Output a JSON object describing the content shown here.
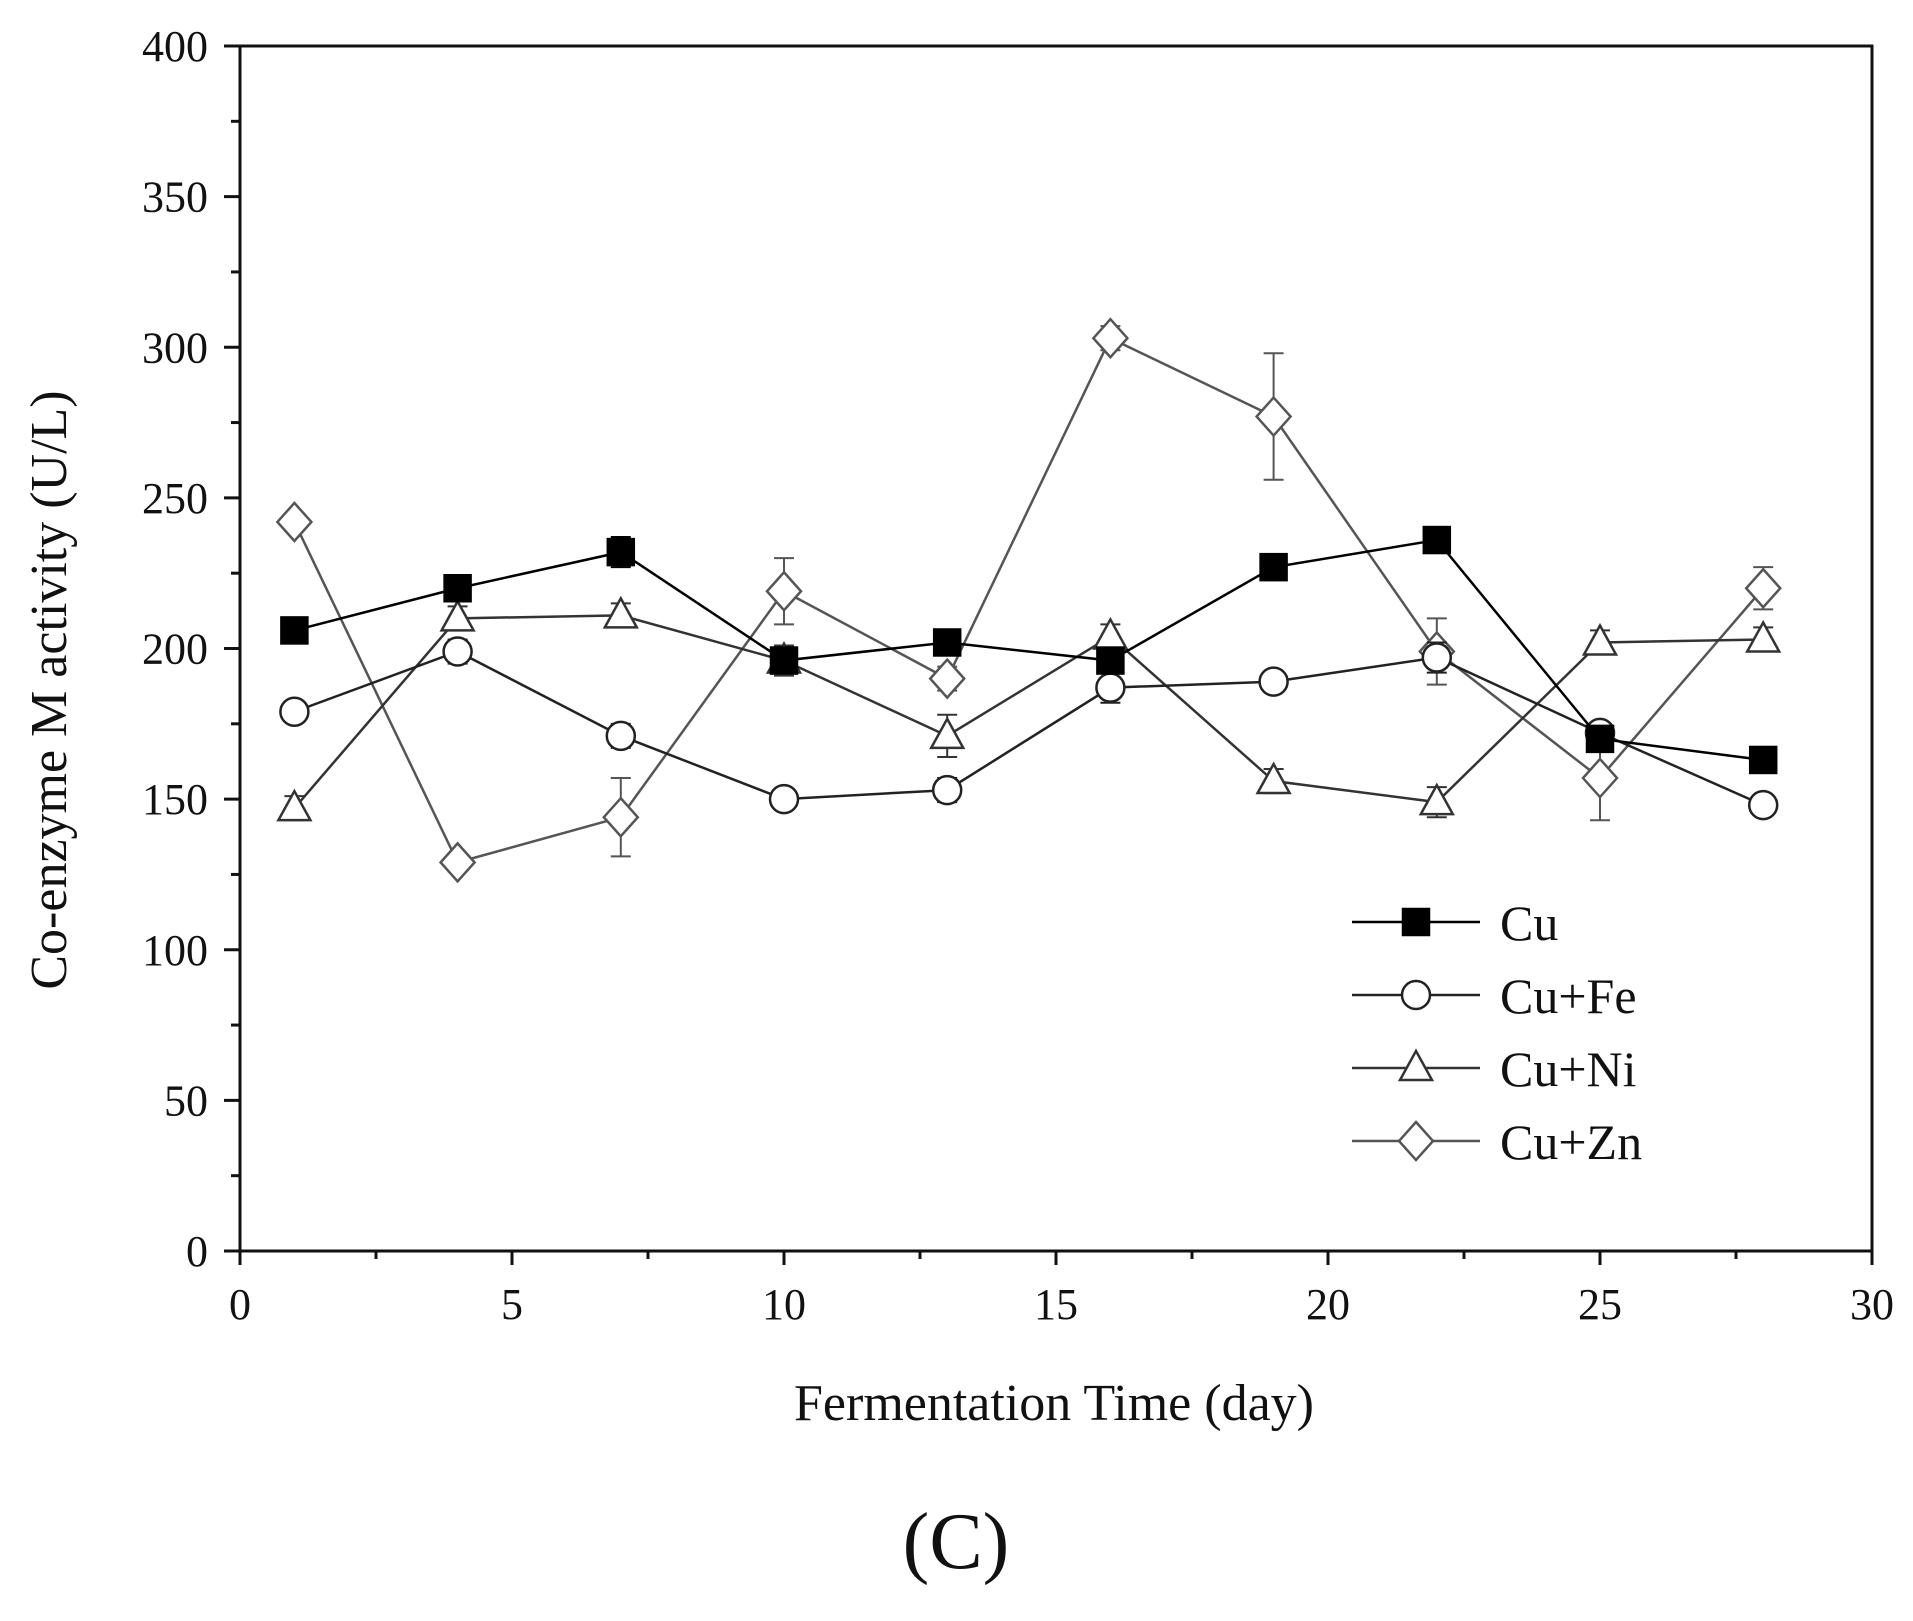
{
  "chart_data": {
    "type": "line",
    "title": "",
    "xlabel": "Fermentation Time (day)",
    "ylabel": "Co-enzyme M activity (U/L)",
    "xlim": [
      0,
      30
    ],
    "ylim": [
      0,
      400
    ],
    "xticks": [
      "0",
      "5",
      "10",
      "15",
      "20",
      "25",
      "30"
    ],
    "yticks": [
      "0",
      "50",
      "100",
      "150",
      "200",
      "250",
      "300",
      "350",
      "400"
    ],
    "panel_label": "(C)",
    "legend_position": "lower-right",
    "x": [
      1,
      4,
      7,
      10,
      13,
      16,
      19,
      22,
      25,
      28
    ],
    "series": [
      {
        "name": "Cu",
        "marker": "square-filled",
        "color": "#000000",
        "values": [
          206,
          220,
          232,
          196,
          202,
          196,
          227,
          236,
          170,
          163
        ],
        "errors": [
          2,
          3,
          5,
          4,
          3,
          4,
          3,
          3,
          3,
          3
        ]
      },
      {
        "name": "Cu+Fe",
        "marker": "circle-open",
        "color": "#222222",
        "values": [
          179,
          199,
          171,
          150,
          153,
          187,
          189,
          197,
          172,
          148
        ],
        "errors": [
          3,
          4,
          4,
          3,
          4,
          5,
          3,
          5,
          3,
          3
        ]
      },
      {
        "name": "Cu+Ni",
        "marker": "triangle-open",
        "color": "#333333",
        "values": [
          147,
          210,
          211,
          196,
          171,
          204,
          156,
          149,
          202,
          203
        ],
        "errors": [
          4,
          4,
          4,
          5,
          7,
          4,
          4,
          5,
          4,
          4
        ]
      },
      {
        "name": "Cu+Zn",
        "marker": "diamond-open",
        "color": "#555555",
        "values": [
          242,
          129,
          144,
          219,
          190,
          303,
          277,
          199,
          157,
          220
        ],
        "errors": [
          3,
          3,
          13,
          11,
          4,
          4,
          21,
          11,
          14,
          7
        ]
      }
    ]
  }
}
